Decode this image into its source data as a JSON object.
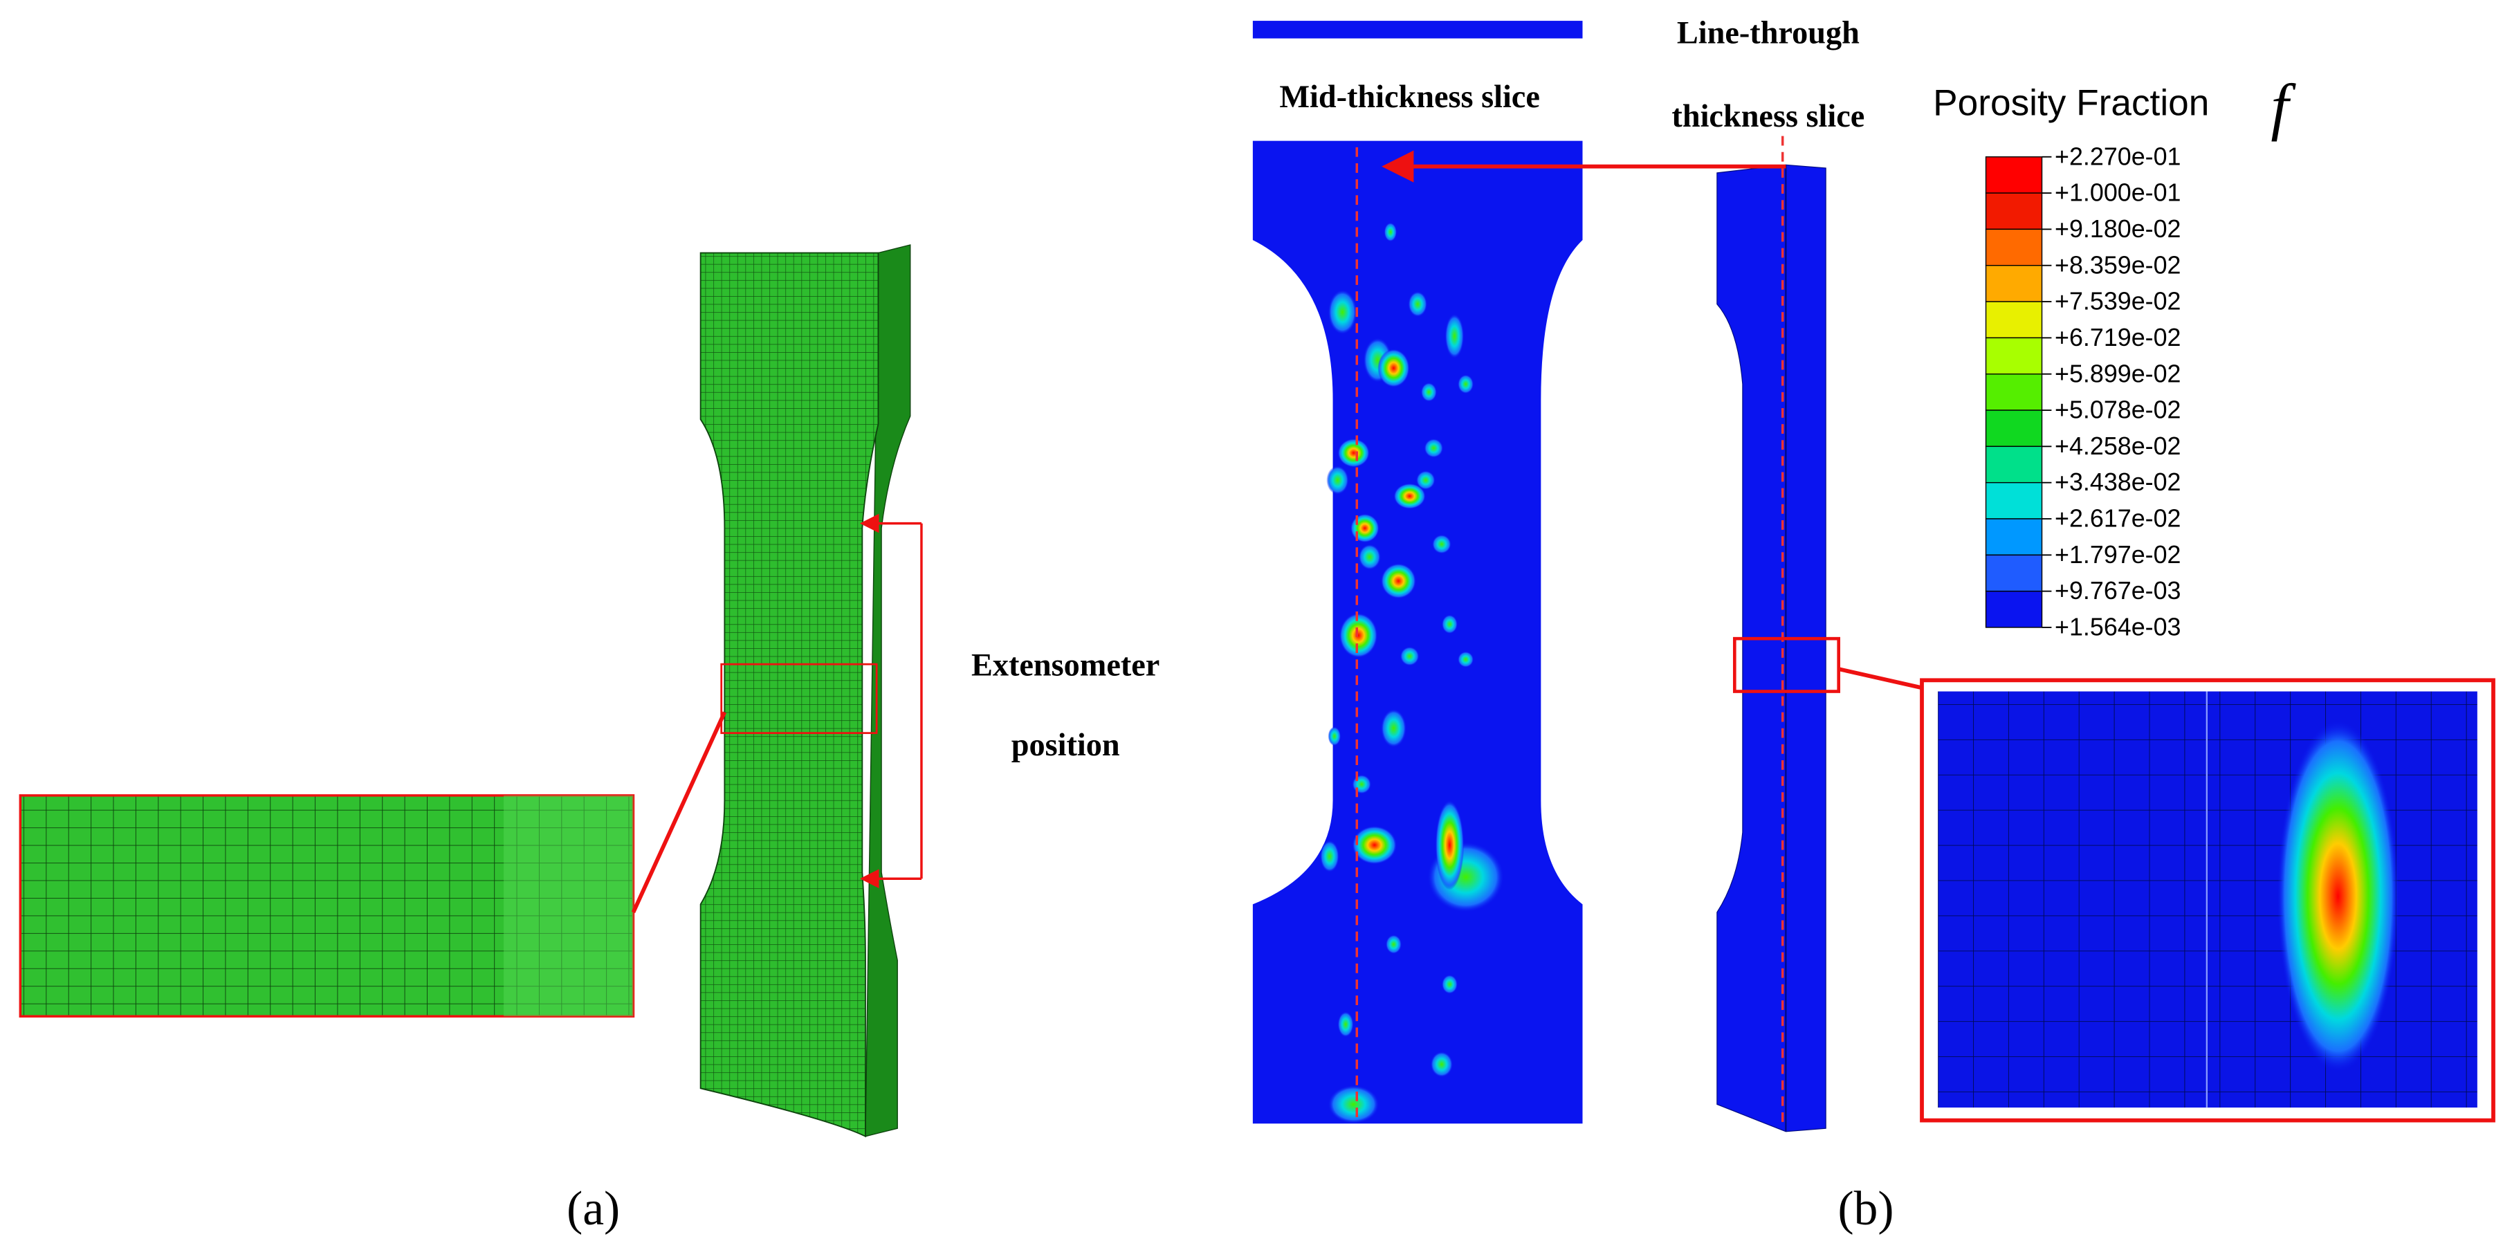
{
  "panel_a": {
    "annotation": [
      "Extensometer",
      "position"
    ],
    "label": "(a)"
  },
  "panel_b": {
    "mid_slice_label": "Mid-thickness slice",
    "through_slice_label": [
      "Line-through",
      "thickness slice"
    ],
    "label": "(b)"
  },
  "legend": {
    "title": "Porosity Fraction",
    "symbol": "f",
    "labels": [
      "+2.270e-01",
      "+1.000e-01",
      "+9.180e-02",
      "+8.359e-02",
      "+7.539e-02",
      "+6.719e-02",
      "+5.899e-02",
      "+5.078e-02",
      "+4.258e-02",
      "+3.438e-02",
      "+2.617e-02",
      "+1.797e-02",
      "+9.767e-03",
      "+1.564e-03"
    ],
    "colors": [
      "#ff0000",
      "#f21a00",
      "#ff6a00",
      "#ffaa00",
      "#e8f000",
      "#a8ff00",
      "#55ee00",
      "#10d820",
      "#00e08a",
      "#00e0d8",
      "#0098ff",
      "#1f5cff",
      "#0a14f0"
    ]
  }
}
